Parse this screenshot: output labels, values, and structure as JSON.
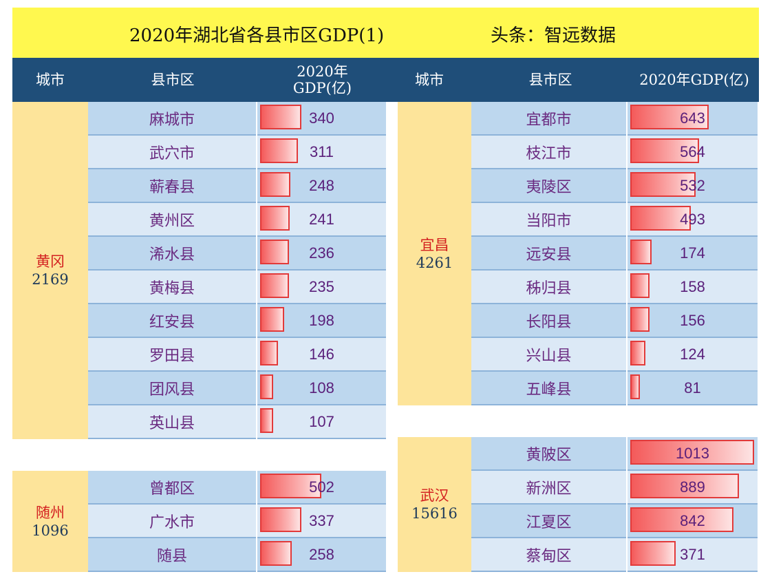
{
  "title": "2020年湖北省各县市区GDP(1)",
  "source": "头条：智远数据",
  "headers": {
    "left": [
      "城市",
      "县市区",
      "2020年\nGDP(亿)"
    ],
    "right": [
      "城市",
      "县市区",
      "2020年GDP(亿)"
    ]
  },
  "colors": {
    "header_bg": "#1f4e79",
    "banner_bg": "#fff84f",
    "city_bg": "#fde49a",
    "row_dark": "#bdd7ee",
    "row_light": "#dce9f6",
    "bar": "#f45a5a"
  },
  "chart_data": [
    {
      "type": "bar",
      "city": "黄冈",
      "total": "2169",
      "categories": [
        "麻城市",
        "武穴市",
        "蕲春县",
        "黄州区",
        "浠水县",
        "黄梅县",
        "红安县",
        "罗田县",
        "团风县",
        "英山县"
      ],
      "values": [
        340,
        311,
        248,
        241,
        236,
        235,
        198,
        146,
        108,
        107
      ]
    },
    {
      "type": "bar",
      "city": "随州",
      "total": "1096",
      "categories": [
        "曾都区",
        "广水市",
        "随县"
      ],
      "values": [
        502,
        337,
        258
      ]
    },
    {
      "type": "bar",
      "city": "宜昌",
      "total": "4261",
      "categories": [
        "宜都市",
        "枝江市",
        "夷陵区",
        "当阳市",
        "远安县",
        "秭归县",
        "长阳县",
        "兴山县",
        "五峰县"
      ],
      "values": [
        643,
        564,
        532,
        493,
        174,
        158,
        156,
        124,
        81
      ]
    },
    {
      "type": "bar",
      "city": "武汉",
      "total": "15616",
      "categories": [
        "黄陂区",
        "新洲区",
        "江夏区",
        "蔡甸区"
      ],
      "values": [
        1013,
        889,
        842,
        371
      ]
    }
  ]
}
